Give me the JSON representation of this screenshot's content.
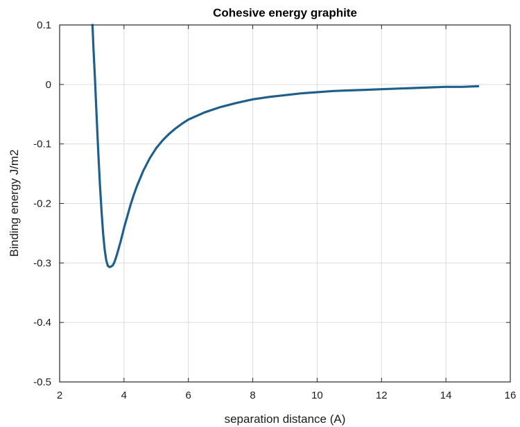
{
  "chart_data": {
    "type": "line",
    "title": "Cohesive energy graphite",
    "xlabel": "separation distance (A)",
    "ylabel": "Binding energy J/m2",
    "xlim": [
      2,
      16
    ],
    "ylim": [
      -0.5,
      0.1
    ],
    "xticks": [
      2,
      4,
      6,
      8,
      10,
      12,
      14,
      16
    ],
    "yticks": [
      -0.5,
      -0.4,
      -0.3,
      -0.2,
      -0.1,
      0,
      0.1
    ],
    "xtick_labels": [
      "2",
      "4",
      "6",
      "8",
      "10",
      "12",
      "14",
      "16"
    ],
    "ytick_labels": [
      "-0.5",
      "-0.4",
      "-0.3",
      "-0.2",
      "-0.1",
      "0",
      "0.1"
    ],
    "grid": true,
    "line_color": "#1f5f8b",
    "series": [
      {
        "x": [
          3.02,
          3.05,
          3.1,
          3.15,
          3.2,
          3.25,
          3.3,
          3.35,
          3.4,
          3.45,
          3.5,
          3.55,
          3.6,
          3.65,
          3.7,
          3.75,
          3.8,
          3.9,
          4.0,
          4.1,
          4.2,
          4.3,
          4.4,
          4.6,
          4.8,
          5.0,
          5.2,
          5.4,
          5.6,
          5.8,
          6.0,
          6.5,
          7.0,
          7.5,
          8.0,
          8.5,
          9.0,
          9.5,
          10.0,
          10.5,
          11.0,
          11.5,
          12.0,
          12.5,
          13.0,
          13.5,
          14.0,
          14.5,
          15.0
        ],
        "y": [
          0.1,
          0.061,
          0.006,
          -0.055,
          -0.113,
          -0.166,
          -0.212,
          -0.25,
          -0.278,
          -0.296,
          -0.305,
          -0.307,
          -0.306,
          -0.304,
          -0.299,
          -0.291,
          -0.282,
          -0.263,
          -0.241,
          -0.222,
          -0.203,
          -0.186,
          -0.171,
          -0.145,
          -0.124,
          -0.107,
          -0.094,
          -0.083,
          -0.074,
          -0.066,
          -0.059,
          -0.047,
          -0.038,
          -0.031,
          -0.025,
          -0.021,
          -0.018,
          -0.015,
          -0.013,
          -0.011,
          -0.01,
          -0.009,
          -0.008,
          -0.007,
          -0.006,
          -0.005,
          -0.004,
          -0.004,
          -0.003
        ]
      }
    ]
  }
}
